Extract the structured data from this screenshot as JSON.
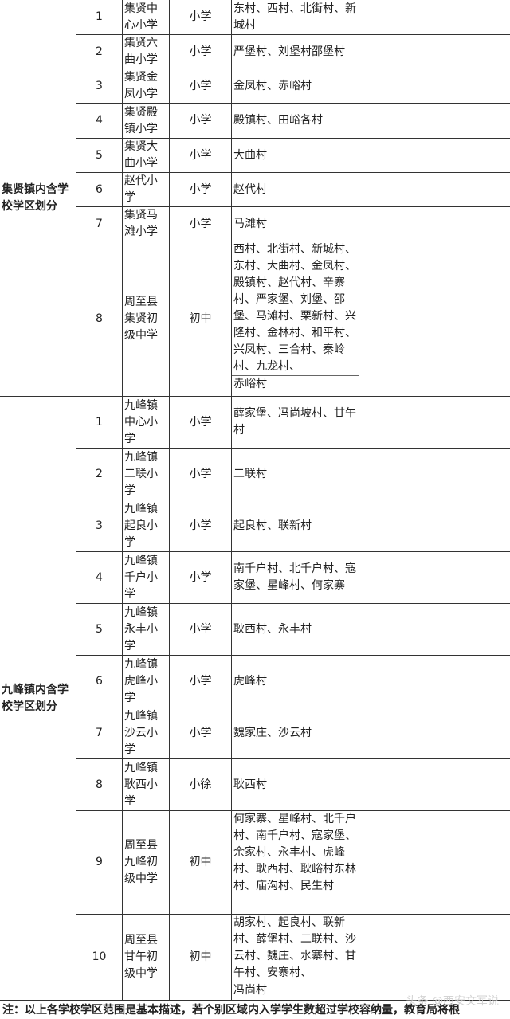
{
  "sections": [
    {
      "district": "集贤镇内含学校学区划分",
      "rows": [
        {
          "no": "1",
          "name": "集贤中心小学",
          "type": "小学",
          "villages": "东村、西村、北街村、新城村",
          "tail": ""
        },
        {
          "no": "2",
          "name": "集贤六曲小学",
          "type": "小学",
          "villages": "严堡村、刘堡村邵堡村",
          "tail": ""
        },
        {
          "no": "3",
          "name": "集贤金凤小学",
          "type": "小学",
          "villages": "金凤村、赤峪村",
          "tail": ""
        },
        {
          "no": "4",
          "name": "集贤殿镇小学",
          "type": "小学",
          "villages": "殿镇村、田峪各村",
          "tail": ""
        },
        {
          "no": "5",
          "name": "集贤大曲小学",
          "type": "小学",
          "villages": "大曲村",
          "tail": ""
        },
        {
          "no": "6",
          "name": "赵代小学",
          "type": "小学",
          "villages": "赵代村",
          "tail": ""
        },
        {
          "no": "7",
          "name": "集贤马滩小学",
          "type": "小学",
          "villages": "马滩村",
          "tail": ""
        },
        {
          "no": "8",
          "name": "周至县集贤初级中学",
          "type": "初中",
          "villages": "西村、北街村、新城村、东村、大曲村、金凤村、殿镇村、赵代村、辛寨村、严家堡、刘堡、邵堡、马滩村、栗新村、兴隆村、金林村、和平村、兴凤村、三合村、秦岭村、九龙村、",
          "tail": "赤峪村"
        }
      ]
    },
    {
      "district": "九峰镇内含学校学区划分",
      "rows": [
        {
          "no": "1",
          "name": "九峰镇中心小学",
          "type": "小学",
          "villages": "薛家堡、冯尚坡村、甘午村",
          "tail": ""
        },
        {
          "no": "2",
          "name": "九峰镇二联小学",
          "type": "小学",
          "villages": "二联村",
          "tail": ""
        },
        {
          "no": "3",
          "name": "九峰镇起良小学",
          "type": "小学",
          "villages": "起良村、联新村",
          "tail": ""
        },
        {
          "no": "4",
          "name": "九峰镇千户小学",
          "type": "小学",
          "villages": "南千户村、北千户村、寇家堡、星峰村、何家寨",
          "tail": ""
        },
        {
          "no": "5",
          "name": "九峰镇永丰小学",
          "type": "小学",
          "villages": "耿西村、永丰村",
          "tail": ""
        },
        {
          "no": "6",
          "name": "九峰镇虎峰小学",
          "type": "小学",
          "villages": "虎峰村",
          "tail": ""
        },
        {
          "no": "7",
          "name": "九峰镇沙云小学",
          "type": "小学",
          "villages": "魏家庄、沙云村",
          "tail": ""
        },
        {
          "no": "8",
          "name": "九峰镇耿西小学",
          "type": "小徐",
          "villages": "耿西村",
          "tail": ""
        },
        {
          "no": "9",
          "name": "周至县九峰初级中学",
          "type": "初中",
          "villages": "何家寨、星峰村、北千户村、南千户村、寇家堡、余家村、永丰村、虎峰村、耿西村、耿峪村东林村、庙沟村、民生村",
          "tail": ""
        },
        {
          "no": "10",
          "name": "周至县甘午初级中学",
          "type": "初中",
          "villages": "胡家村、起良村、联新村、薛堡村、二联村、沙云村、魏庄、水寨村、甘午村、安寨村、",
          "tail": "冯尚村"
        }
      ]
    }
  ],
  "note": "注：以上各学校学区范围是基本描述，若个别区域内入学学生数超过学校容纳量，教育局将根",
  "watermark": "头条 @西安文军说"
}
